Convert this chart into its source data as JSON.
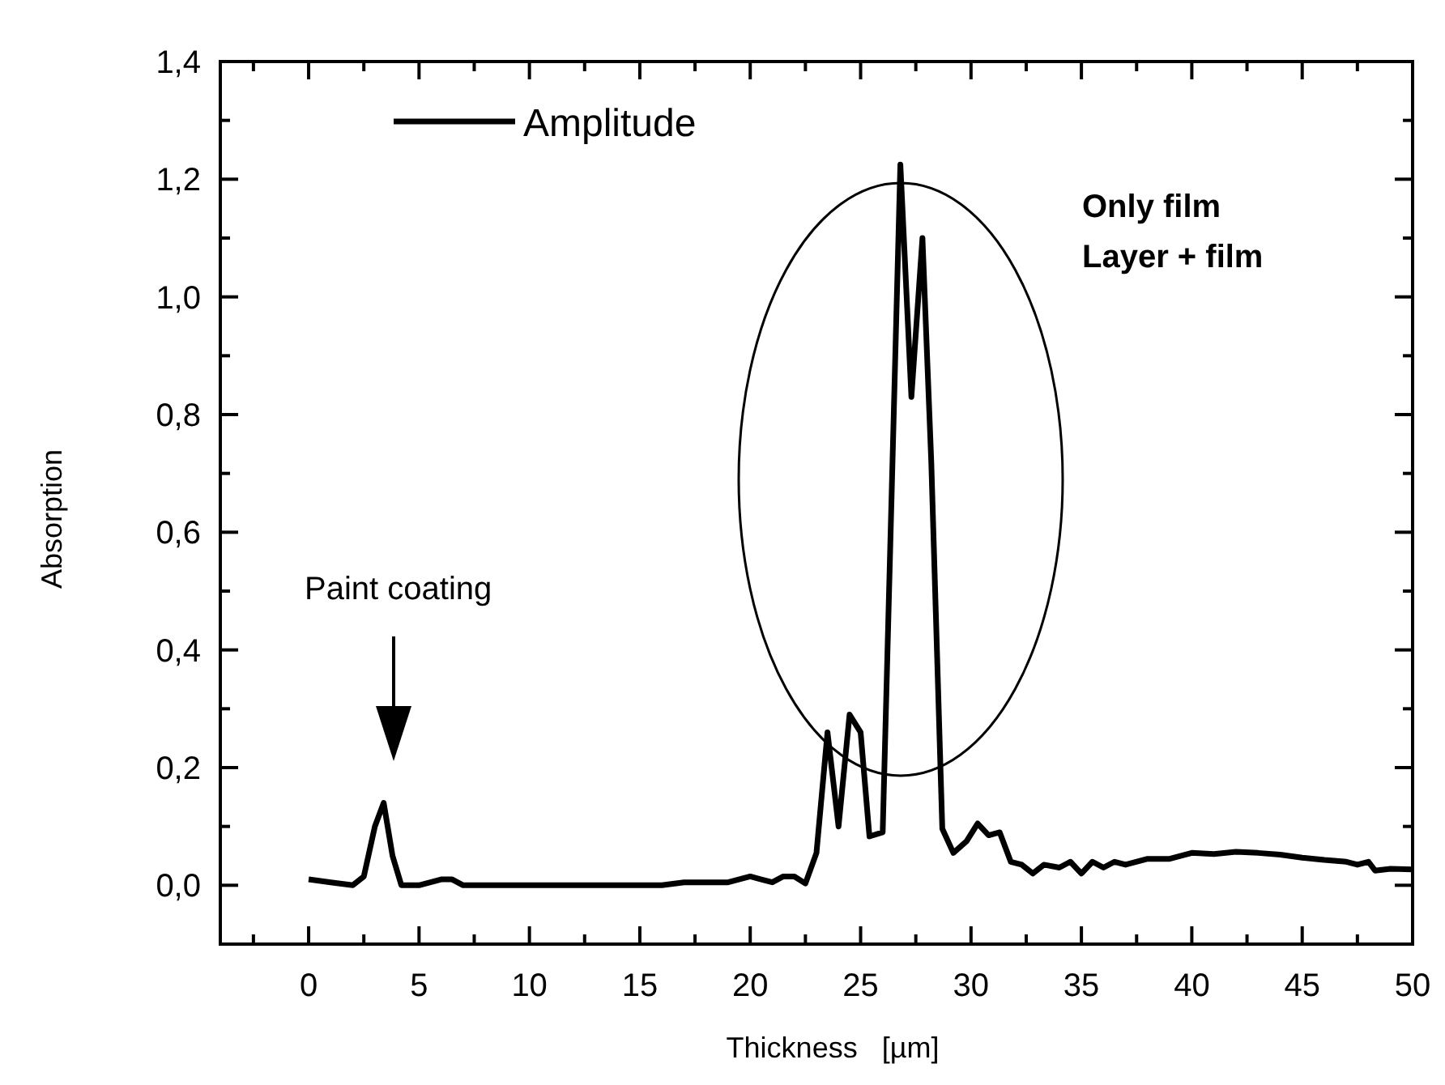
{
  "chart_data": {
    "type": "line",
    "xlabel": "Thickness   [µm]",
    "ylabel": "Absorption",
    "xlim": [
      -4,
      50
    ],
    "ylim": [
      -0.1,
      1.4
    ],
    "xticks": [
      {
        "value": -2.5,
        "label": null
      },
      0,
      {
        "value": 2.5,
        "label": null
      },
      5,
      {
        "value": 7.5,
        "label": null
      },
      10,
      {
        "value": 12.5,
        "label": null
      },
      15,
      {
        "value": 17.5,
        "label": null
      },
      20,
      {
        "value": 22.5,
        "label": null
      },
      25,
      {
        "value": 27.5,
        "label": null
      },
      30,
      {
        "value": 32.5,
        "label": null
      },
      35,
      {
        "value": 37.5,
        "label": null
      },
      40,
      {
        "value": 42.5,
        "label": null
      },
      45,
      {
        "value": 47.5,
        "label": null
      },
      50
    ],
    "yticks": [
      {
        "value": -0.1,
        "label": null
      },
      {
        "value": 0,
        "label": "0,0"
      },
      {
        "value": 0.1,
        "label": null
      },
      {
        "value": 0.2,
        "label": "0,2"
      },
      {
        "value": 0.3,
        "label": null
      },
      {
        "value": 0.4,
        "label": "0,4"
      },
      {
        "value": 0.5,
        "label": null
      },
      {
        "value": 0.6,
        "label": "0,6"
      },
      {
        "value": 0.7,
        "label": null
      },
      {
        "value": 0.8,
        "label": "0,8"
      },
      {
        "value": 0.9,
        "label": null
      },
      {
        "value": 1.0,
        "label": "1,0"
      },
      {
        "value": 1.1,
        "label": null
      },
      {
        "value": 1.2,
        "label": "1,2"
      },
      {
        "value": 1.3,
        "label": null
      },
      {
        "value": 1.4,
        "label": "1,4"
      }
    ],
    "grid": false,
    "legend": "top left",
    "marker": "none",
    "line_style": "solid",
    "series": [
      {
        "name": "Amplitude",
        "color": "#000000",
        "x": [
          0,
          1,
          2,
          2.5,
          3,
          3.4,
          3.8,
          4.2,
          5,
          6,
          6.5,
          7,
          8,
          9,
          10,
          11,
          12,
          13,
          14,
          15,
          16,
          17,
          18,
          19,
          20,
          20.5,
          21,
          21.5,
          22,
          22.5,
          23,
          23.5,
          24,
          24.5,
          25,
          25.4,
          26,
          26.8,
          27.3,
          27.8,
          28.2,
          28.7,
          29.2,
          29.8,
          30.3,
          30.8,
          31.3,
          31.8,
          32.3,
          32.8,
          33.3,
          34,
          34.5,
          35,
          35.5,
          36,
          36.5,
          37,
          38,
          39,
          40,
          41,
          42,
          43,
          44,
          45,
          46,
          47,
          47.5,
          48,
          48.3,
          49,
          50
        ],
        "values": [
          0.01,
          0.005,
          0.0,
          0.015,
          0.1,
          0.14,
          0.05,
          0.0,
          0.0,
          0.01,
          0.01,
          0.0,
          0.0,
          0.0,
          0.0,
          0.0,
          0.0,
          0.0,
          0.0,
          0.0,
          0.0,
          0.005,
          0.005,
          0.005,
          0.015,
          0.01,
          0.005,
          0.015,
          0.015,
          0.003,
          0.055,
          0.26,
          0.1,
          0.29,
          0.26,
          0.083,
          0.09,
          1.225,
          0.83,
          1.1,
          0.72,
          0.096,
          0.055,
          0.075,
          0.105,
          0.085,
          0.09,
          0.04,
          0.035,
          0.02,
          0.035,
          0.03,
          0.04,
          0.02,
          0.04,
          0.03,
          0.04,
          0.035,
          0.045,
          0.045,
          0.055,
          0.053,
          0.057,
          0.055,
          0.052,
          0.047,
          0.043,
          0.04,
          0.035,
          0.04,
          0.025,
          0.028,
          0.027
        ]
      }
    ],
    "annotations": [
      "Paint coating",
      "Only film",
      "Layer + film"
    ]
  }
}
